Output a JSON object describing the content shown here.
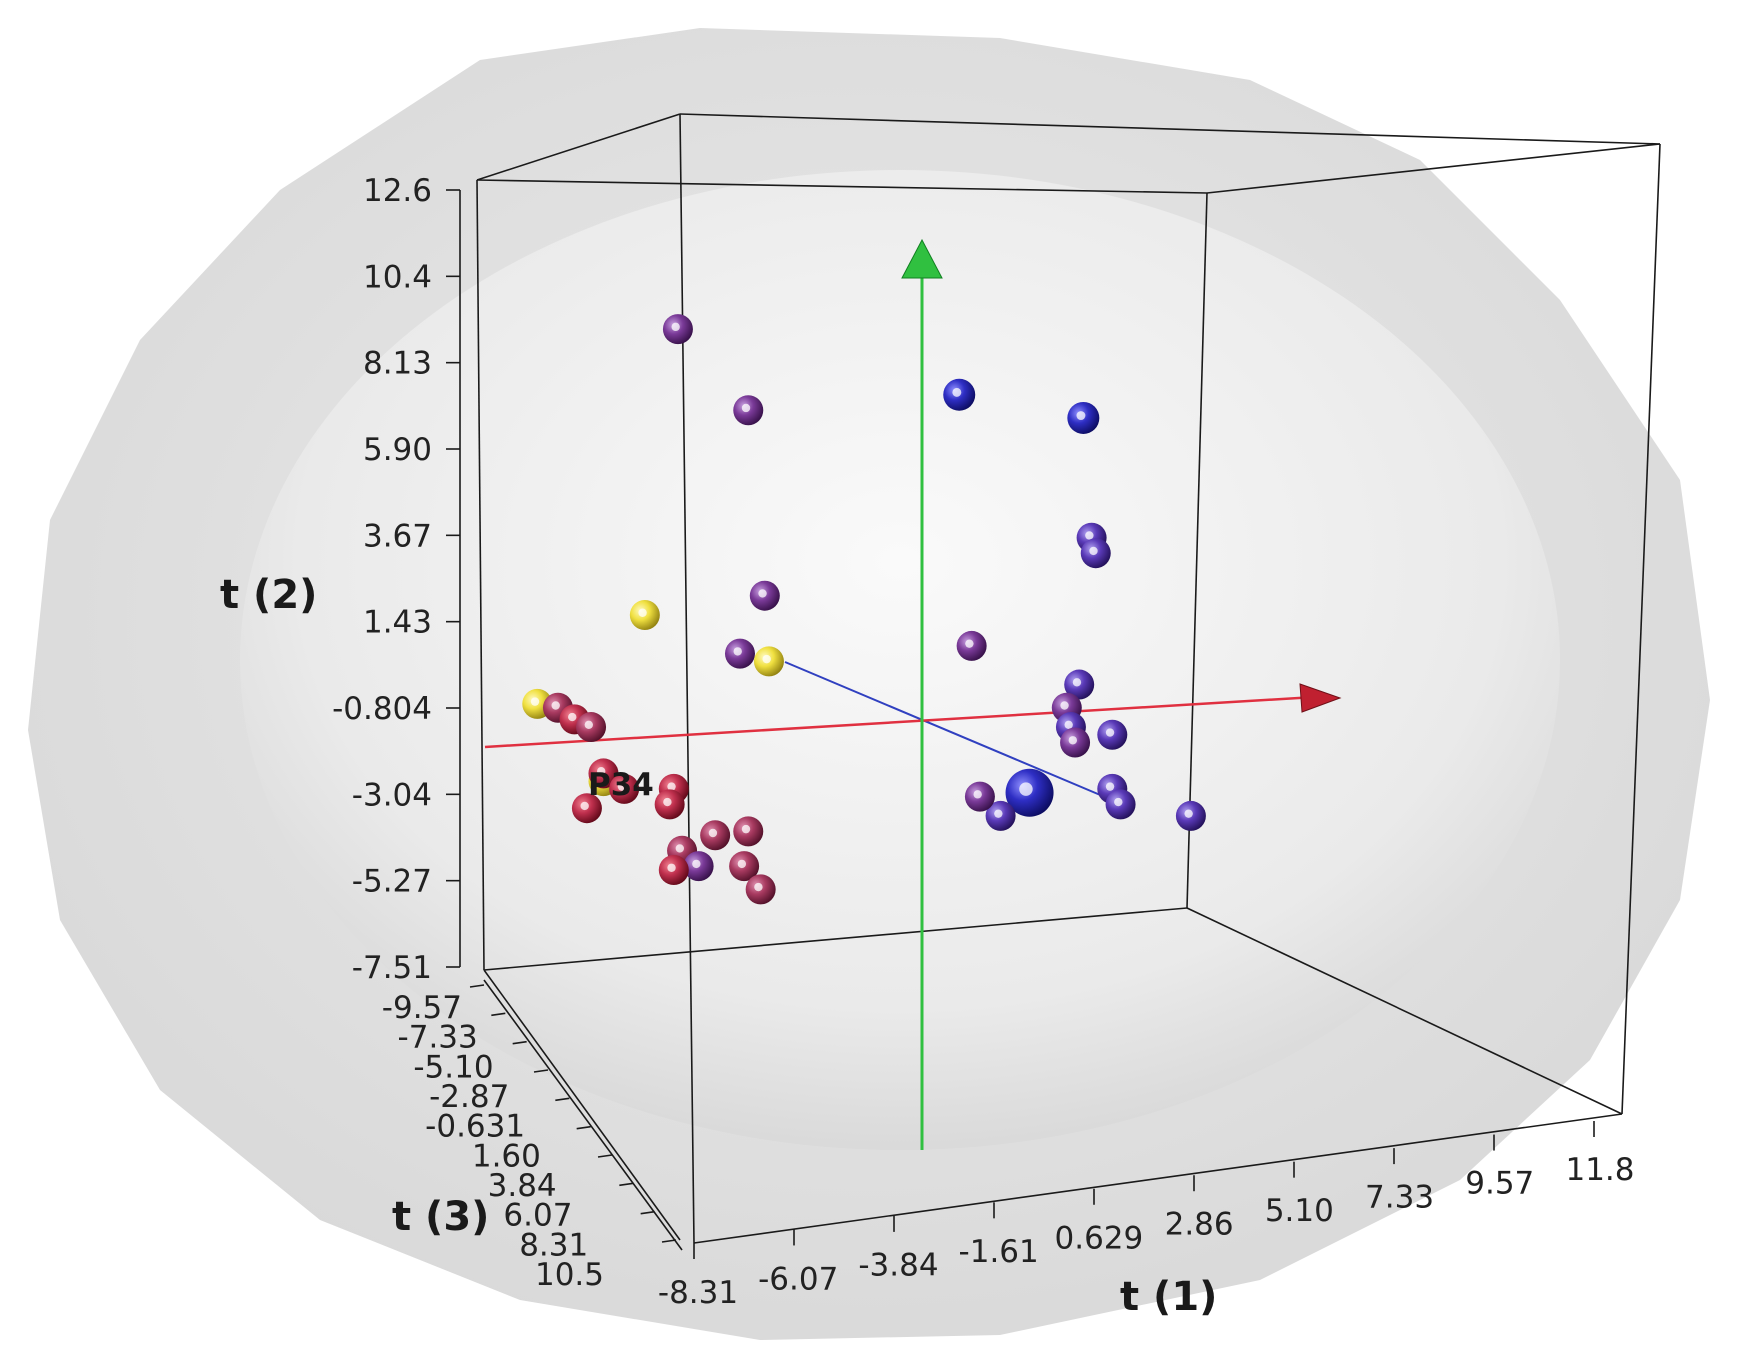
{
  "chart_data": {
    "type": "scatter",
    "dimensions": 3,
    "axes": {
      "x": {
        "label": "t (1)",
        "ticks": [
          "-8.31",
          "-6.07",
          "-3.84",
          "-1.61",
          "0.629",
          "2.86",
          "5.10",
          "7.33",
          "9.57",
          "11.8"
        ],
        "range": [
          -8.31,
          11.8
        ]
      },
      "y": {
        "label": "t (2)",
        "ticks": [
          "12.6",
          "10.4",
          "8.13",
          "5.90",
          "3.67",
          "1.43",
          "-0.804",
          "-3.04",
          "-5.27",
          "-7.51"
        ],
        "range": [
          -7.51,
          12.6
        ]
      },
      "z": {
        "label": "t (3)",
        "ticks": [
          "-9.57",
          "-7.33",
          "-5.10",
          "-2.87",
          "-0.631",
          "1.60",
          "3.84",
          "6.07",
          "8.31",
          "10.5"
        ],
        "range": [
          -9.57,
          10.5
        ]
      }
    },
    "confidence_ellipsoids": 2,
    "colors": {
      "red": "#c0304e",
      "crimson": "#a83a60",
      "purple": "#7a3a98",
      "indigo": "#5a3ab8",
      "blue": "#2e2ec4",
      "yellow": "#f0e040",
      "x_arrow": "#e03040",
      "y_arrow": "#30c040",
      "loading_line": "#3040c0"
    },
    "annotated_point": {
      "label": "P34"
    },
    "points": [
      {
        "x": -5.9,
        "y": 9.0,
        "color": "purple"
      },
      {
        "x": -4.2,
        "y": 6.9,
        "color": "purple"
      },
      {
        "x": -3.8,
        "y": 2.1,
        "color": "purple"
      },
      {
        "x": -4.4,
        "y": 0.6,
        "color": "purple"
      },
      {
        "x": -6.7,
        "y": 1.6,
        "color": "yellow"
      },
      {
        "x": -3.7,
        "y": 0.4,
        "color": "yellow"
      },
      {
        "x": -9.3,
        "y": -0.7,
        "color": "yellow"
      },
      {
        "x": -7.7,
        "y": -2.7,
        "color": "yellow"
      },
      {
        "x": -8.8,
        "y": -0.8,
        "color": "crimson"
      },
      {
        "x": -8.4,
        "y": -1.1,
        "color": "red"
      },
      {
        "x": -8.0,
        "y": -1.3,
        "color": "crimson"
      },
      {
        "x": -7.7,
        "y": -2.5,
        "color": "red"
      },
      {
        "x": -8.1,
        "y": -3.4,
        "color": "red"
      },
      {
        "x": -7.2,
        "y": -2.9,
        "color": "red"
      },
      {
        "x": -6.0,
        "y": -2.9,
        "color": "red"
      },
      {
        "x": -6.1,
        "y": -3.3,
        "color": "red"
      },
      {
        "x": -5.0,
        "y": -4.1,
        "color": "crimson"
      },
      {
        "x": -4.2,
        "y": -4.0,
        "color": "crimson"
      },
      {
        "x": -5.8,
        "y": -4.5,
        "color": "crimson"
      },
      {
        "x": -5.4,
        "y": -4.9,
        "color": "purple"
      },
      {
        "x": -6.0,
        "y": -5.0,
        "color": "red"
      },
      {
        "x": -4.3,
        "y": -4.9,
        "color": "crimson"
      },
      {
        "x": -3.9,
        "y": -5.5,
        "color": "crimson"
      },
      {
        "x": 0.9,
        "y": 7.3,
        "color": "blue"
      },
      {
        "x": 3.9,
        "y": 6.7,
        "color": "blue"
      },
      {
        "x": 4.1,
        "y": 3.6,
        "color": "indigo"
      },
      {
        "x": 4.2,
        "y": 3.2,
        "color": "indigo"
      },
      {
        "x": 1.2,
        "y": 0.8,
        "color": "purple"
      },
      {
        "x": 3.8,
        "y": -0.2,
        "color": "indigo"
      },
      {
        "x": 3.5,
        "y": -0.8,
        "color": "purple"
      },
      {
        "x": 3.6,
        "y": -1.3,
        "color": "indigo"
      },
      {
        "x": 3.7,
        "y": -1.7,
        "color": "purple"
      },
      {
        "x": 4.6,
        "y": -1.5,
        "color": "indigo"
      },
      {
        "x": 4.6,
        "y": -2.9,
        "color": "indigo"
      },
      {
        "x": 4.8,
        "y": -3.3,
        "color": "indigo"
      },
      {
        "x": 6.5,
        "y": -3.6,
        "color": "indigo"
      },
      {
        "x": 2.6,
        "y": -3.0,
        "color": "blue"
      },
      {
        "x": 1.9,
        "y": -3.6,
        "color": "indigo"
      },
      {
        "x": 1.4,
        "y": -3.1,
        "color": "purple"
      }
    ]
  }
}
